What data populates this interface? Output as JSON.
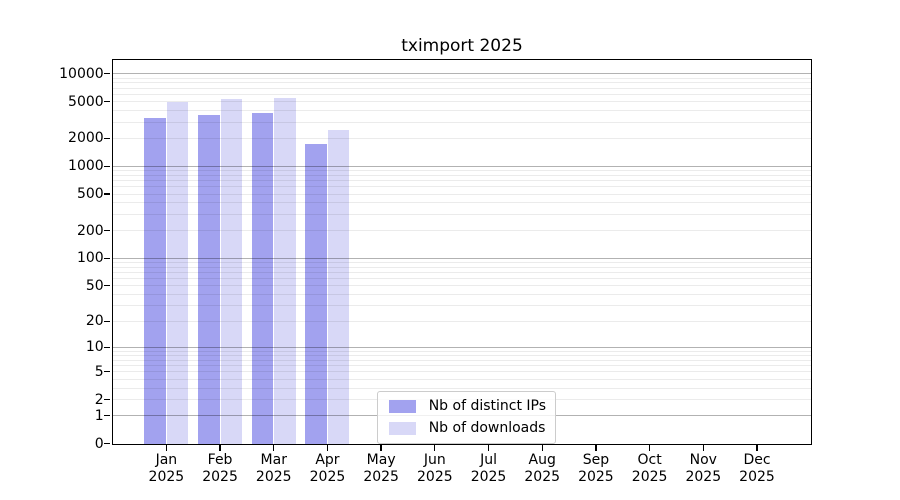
{
  "title": "tximport 2025",
  "legend": {
    "items": [
      {
        "label": "Nb of distinct IPs",
        "color": "#a2a2ef"
      },
      {
        "label": "Nb of downloads",
        "color": "#d8d8f7"
      }
    ],
    "position": "lower center"
  },
  "chart_data": {
    "type": "bar",
    "title": "tximport 2025",
    "categories": [
      "Jan",
      "Feb",
      "Mar",
      "Apr",
      "May",
      "Jun",
      "Jul",
      "Aug",
      "Sep",
      "Oct",
      "Nov",
      "Dec"
    ],
    "category_year": "2025",
    "series": [
      {
        "name": "Nb of distinct IPs",
        "color": "#a2a2ef",
        "values": [
          3300,
          3600,
          3760,
          1720,
          null,
          null,
          null,
          null,
          null,
          null,
          null,
          null
        ]
      },
      {
        "name": "Nb of downloads",
        "color": "#d8d8f7",
        "values": [
          4900,
          5330,
          5470,
          2480,
          null,
          null,
          null,
          null,
          null,
          null,
          null,
          null
        ]
      }
    ],
    "xlabel": "",
    "ylabel": "",
    "y_scale": "log10(value+1)",
    "y_ticks": [
      0,
      1,
      2,
      5,
      10,
      20,
      50,
      100,
      200,
      500,
      1000,
      2000,
      5000,
      10000
    ],
    "y_axis_max": 14200,
    "grid": "horizontal major+minor, drawn above bars",
    "legend_position": "lower center"
  }
}
